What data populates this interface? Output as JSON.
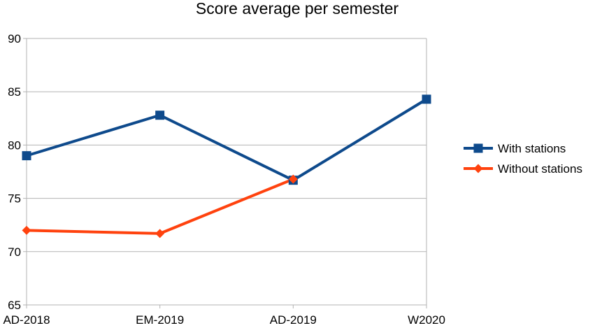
{
  "chart_data": {
    "type": "line",
    "title": "Score average per semester",
    "categories": [
      "AD-2018",
      "EM-2019",
      "AD-2019",
      "W2020"
    ],
    "ylim": [
      65,
      90
    ],
    "yticks": [
      65,
      70,
      75,
      80,
      85,
      90
    ],
    "grid": true,
    "legend_position": "right",
    "series": [
      {
        "name": "With stations",
        "values": [
          79.0,
          82.8,
          76.7,
          84.3
        ],
        "color": "#0e4a8c",
        "marker": "square"
      },
      {
        "name": "Without stations",
        "values": [
          72.0,
          71.7,
          76.8,
          null
        ],
        "color": "#ff420e",
        "marker": "diamond"
      }
    ]
  }
}
